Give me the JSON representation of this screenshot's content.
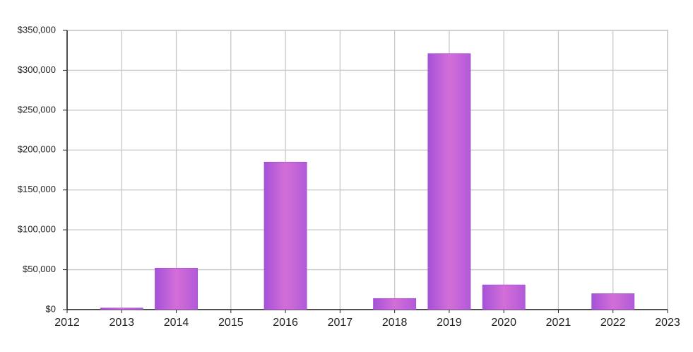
{
  "chart_data": {
    "type": "bar",
    "x": [
      2013,
      2014,
      2016,
      2018,
      2019,
      2020,
      2022
    ],
    "values": [
      2000,
      52000,
      185000,
      14000,
      321000,
      31000,
      20000
    ],
    "color": "#d36ed8",
    "xlim": [
      2012,
      2023
    ],
    "xticks": [
      2012,
      2013,
      2014,
      2015,
      2016,
      2017,
      2018,
      2019,
      2020,
      2021,
      2022,
      2023
    ],
    "ylim": [
      0,
      350000
    ],
    "yticks": [
      {
        "value": 0,
        "label": "$0"
      },
      {
        "value": 50000,
        "label": "$50,000"
      },
      {
        "value": 100000,
        "label": "$100,000"
      },
      {
        "value": 150000,
        "label": "$150,000"
      },
      {
        "value": 200000,
        "label": "$200,000"
      },
      {
        "value": 250000,
        "label": "$250,000"
      },
      {
        "value": 300000,
        "label": "$300,000"
      },
      {
        "value": 350000,
        "label": "$350,000"
      }
    ],
    "grid": true
  }
}
